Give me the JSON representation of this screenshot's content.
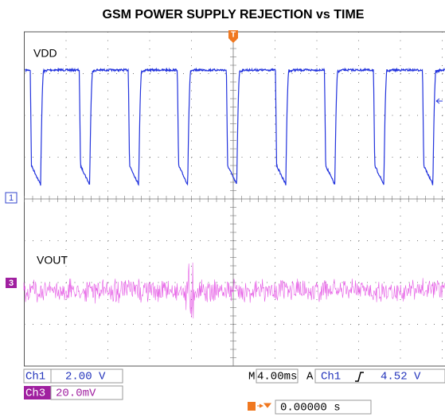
{
  "title": "GSM POWER SUPPLY REJECTION vs TIME",
  "traces": [
    {
      "label": "VDD",
      "marker": "1"
    },
    {
      "label": "VOUT",
      "marker": "3"
    }
  ],
  "trigger_marker": "T",
  "readouts": {
    "ch1": {
      "name": "Ch1",
      "scale": "2.00 V"
    },
    "ch3": {
      "name": "Ch3",
      "scale": "20.0mV"
    },
    "timebase": {
      "prefix": "M",
      "value": "4.00ms"
    },
    "trigger": {
      "mode": "A",
      "source": "Ch1",
      "level": "4.52 V"
    },
    "position": "0.00000 s"
  }
}
